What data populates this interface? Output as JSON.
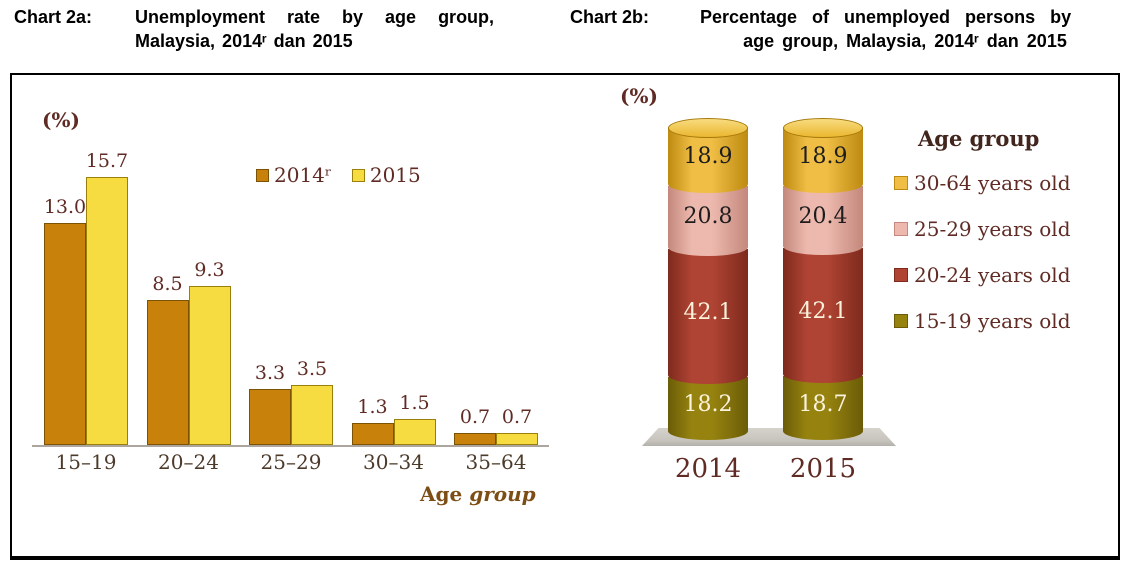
{
  "titles": {
    "chart2a": {
      "label": "Chart 2a:",
      "lines": [
        "Unemployment rate by age group,",
        "Malaysia, 2014ʳ dan 2015"
      ]
    },
    "chart2b": {
      "label": "Chart 2b:",
      "lines": [
        "Percentage of unemployed persons by",
        "age group, Malaysia, 2014ʳ dan 2015"
      ]
    }
  },
  "chart_data": [
    {
      "id": "chart-2a",
      "type": "bar",
      "title": "Unemployment rate by age group, Malaysia, 2014ʳ dan 2015",
      "unit_label": "(%)",
      "xlabel_normal": "Age ",
      "xlabel_italic": "group",
      "categories": [
        "15–19",
        "20–24",
        "25–29",
        "30–34",
        "35–64"
      ],
      "series": [
        {
          "name": "2014ʳ",
          "color": "#C8810A",
          "border": "#7C5305",
          "values": [
            13.0,
            8.5,
            3.3,
            1.3,
            0.7
          ]
        },
        {
          "name": "2015",
          "color": "#F6DC40",
          "border": "#99800D",
          "values": [
            15.7,
            9.3,
            3.5,
            1.5,
            0.7
          ]
        }
      ],
      "ylim": [
        0,
        17
      ],
      "grid": false,
      "legend_position": "top-right",
      "label_color": "#5F2B24"
    },
    {
      "id": "chart-2b",
      "type": "stacked-bar",
      "title": "Percentage of unemployed persons by age group, Malaysia, 2014ʳ dan 2015",
      "unit_label": "(%)",
      "legend_title": "Age group",
      "categories": [
        "2014",
        "2015"
      ],
      "series_bottom_to_top": [
        {
          "name": "15-19 years old",
          "values": [
            18.2,
            18.7
          ],
          "color": "#96830F",
          "edge": "#6B5C08",
          "label_color": "#FBF3DC"
        },
        {
          "name": "20-24 years old",
          "values": [
            42.1,
            42.1
          ],
          "color": "#B04434",
          "edge": "#7E2A1D",
          "label_color": "#FBF3DC"
        },
        {
          "name": "25-29 years old",
          "values": [
            20.8,
            20.4
          ],
          "color": "#EDB9AE",
          "edge": "#C4887C",
          "label_color": "#1D1D1D"
        },
        {
          "name": "30-64 years old",
          "values": [
            18.9,
            18.9
          ],
          "color": "#F0BE45",
          "edge": "#BE8A10",
          "label_color": "#1D1D1D"
        }
      ],
      "top_ellipse": {
        "fill_light": "#F8DC80",
        "fill_dark": "#EAB72F",
        "border": "#A5790A"
      },
      "ylim": [
        0,
        100
      ],
      "grid": false,
      "legend_position": "right"
    }
  ]
}
